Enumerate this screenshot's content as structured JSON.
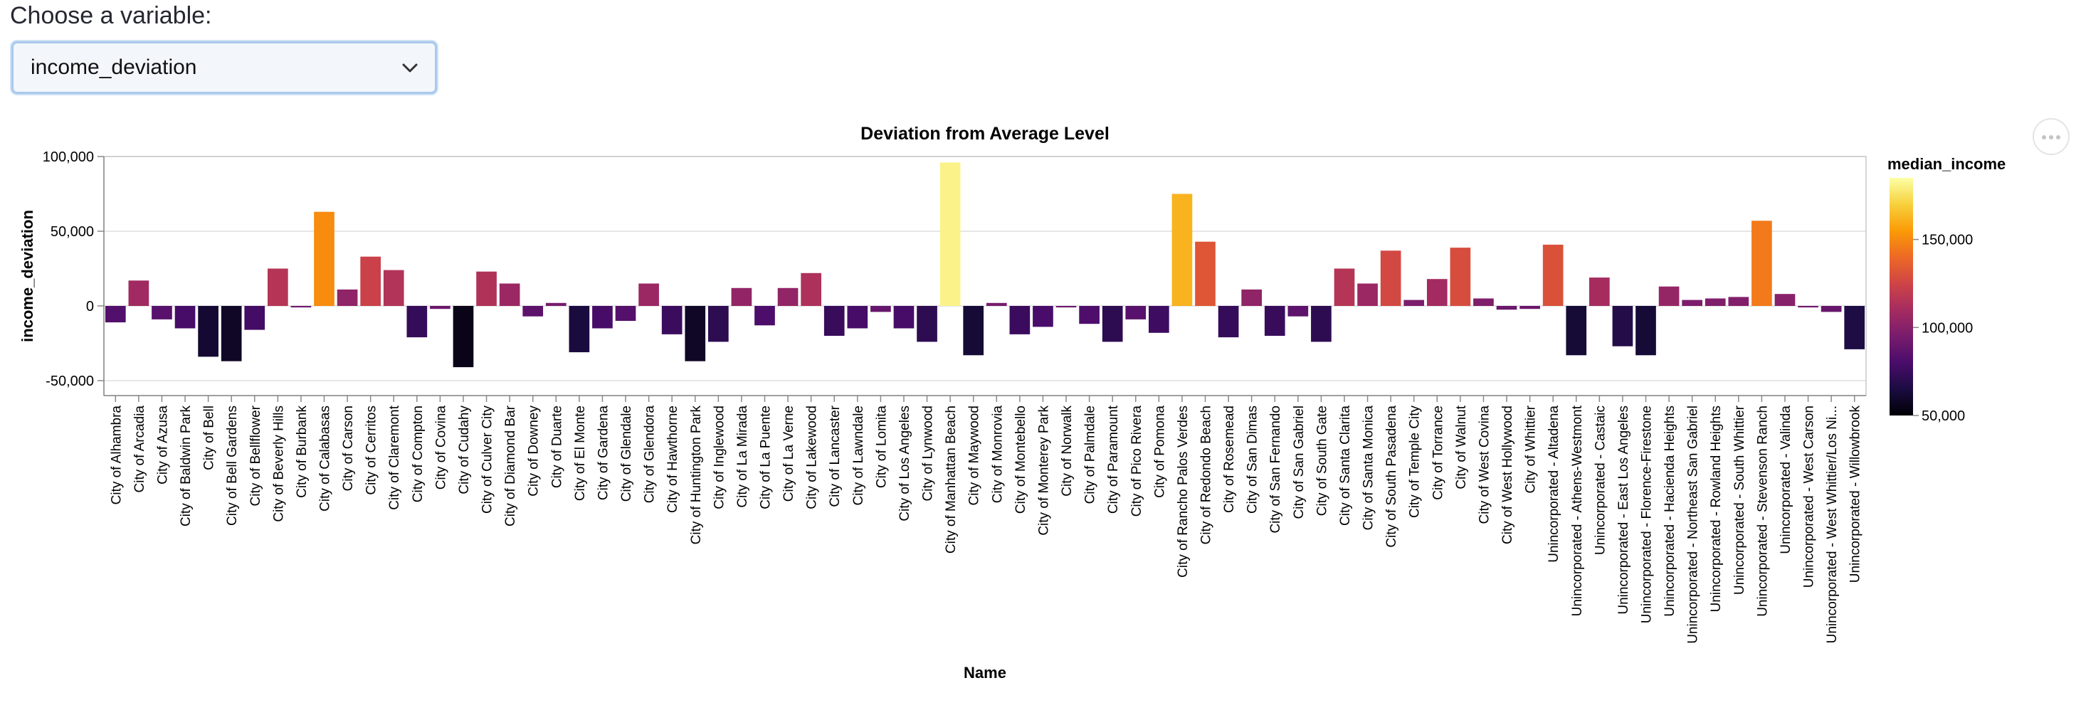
{
  "control": {
    "prompt": "Choose a variable:",
    "selected": "income_deviation"
  },
  "chart_data": {
    "type": "bar",
    "title": "Deviation from Average Level",
    "xlabel": "Name",
    "ylabel": "income_deviation",
    "ylim": [
      -60000,
      100000
    ],
    "yticks": [
      100000,
      50000,
      0,
      -50000
    ],
    "ytick_labels": [
      "100,000",
      "50,000",
      "0",
      "-50,000"
    ],
    "grid": true,
    "color_legend": {
      "title": "median_income",
      "scheme": "inferno",
      "domain": [
        50000,
        185000
      ],
      "ticks": [
        150000,
        100000,
        50000
      ],
      "tick_labels": [
        "150,000",
        "100,000",
        "50,000"
      ],
      "placement": "right"
    },
    "categories": [
      "City of Alhambra",
      "City of Arcadia",
      "City of Azusa",
      "City of Baldwin Park",
      "City of Bell",
      "City of Bell Gardens",
      "City of Bellflower",
      "City of Beverly Hills",
      "City of Burbank",
      "City of Calabasas",
      "City of Carson",
      "City of Cerritos",
      "City of Claremont",
      "City of Compton",
      "City of Covina",
      "City of Cudahy",
      "City of Culver City",
      "City of Diamond Bar",
      "City of Downey",
      "City of Duarte",
      "City of El Monte",
      "City of Gardena",
      "City of Glendale",
      "City of Glendora",
      "City of Hawthorne",
      "City of Huntington Park",
      "City of Inglewood",
      "City of La Mirada",
      "City of La Puente",
      "City of La Verne",
      "City of Lakewood",
      "City of Lancaster",
      "City of Lawndale",
      "City of Lomita",
      "City of Los Angeles",
      "City of Lynwood",
      "City of Manhattan Beach",
      "City of Maywood",
      "City of Monrovia",
      "City of Montebello",
      "City of Monterey Park",
      "City of Norwalk",
      "City of Palmdale",
      "City of Paramount",
      "City of Pico Rivera",
      "City of Pomona",
      "City of Rancho Palos Verdes",
      "City of Redondo Beach",
      "City of Rosemead",
      "City of San Dimas",
      "City of San Fernando",
      "City of San Gabriel",
      "City of South Gate",
      "City of Santa Clarita",
      "City of Santa Monica",
      "City of South Pasadena",
      "City of Temple City",
      "City of Torrance",
      "City of Walnut",
      "City of West Covina",
      "City of West Hollywood",
      "City of Whittier",
      "Unincorporated - Altadena",
      "Unincorporated - Athens-Westmont",
      "Unincorporated - Castaic",
      "Unincorporated - East Los Angeles",
      "Unincorporated - Florence-Firestone",
      "Unincorporated - Hacienda Heights",
      "Unincorporated - Northeast San Gabriel",
      "Unincorporated - Rowland Heights",
      "Unincorporated - South Whittier",
      "Unincorporated - Stevenson Ranch",
      "Unincorporated - Valinda",
      "Unincorporated - West Carson",
      "Unincorporated - West Whittier/Los Ni...",
      "Unincorporated - Willowbrook"
    ],
    "values": [
      -11000,
      17000,
      -9000,
      -15000,
      -34000,
      -37000,
      -16000,
      25000,
      -1000,
      63000,
      11000,
      33000,
      24000,
      -21000,
      -2000,
      -41000,
      23000,
      15000,
      -7000,
      2000,
      -31000,
      -15000,
      -10000,
      15000,
      -19000,
      -37000,
      -24000,
      12000,
      -13000,
      12000,
      22000,
      -20000,
      -15000,
      -4000,
      -15000,
      -24000,
      96000,
      -33000,
      2000,
      -19000,
      -14000,
      -1000,
      -12000,
      -24000,
      -9000,
      -18000,
      75000,
      43000,
      -21000,
      11000,
      -20000,
      -7000,
      -24000,
      25000,
      15000,
      37000,
      4000,
      18000,
      39000,
      5000,
      -2500,
      -2000,
      41000,
      -33000,
      19000,
      -27000,
      -33000,
      13000,
      4000,
      5000,
      6000,
      57000,
      8000,
      -1000,
      -4000,
      -29000
    ]
  }
}
